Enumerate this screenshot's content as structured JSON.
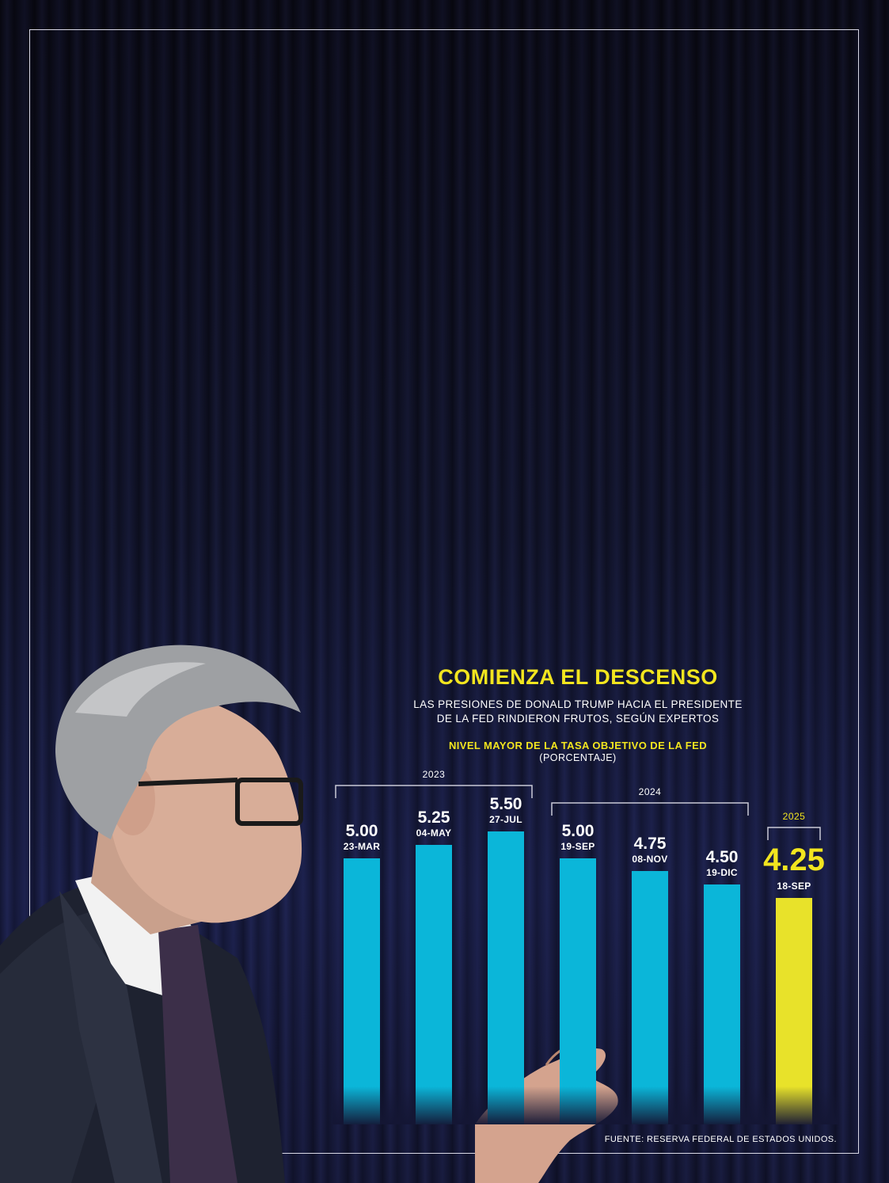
{
  "chart_data": {
    "type": "bar",
    "title": "COMIENZA EL DESCENSO",
    "subtitle_lines": [
      "LAS PRESIONES DE DONALD TRUMP HACIA EL PRESIDENTE",
      "DE LA FED RINDIERON FRUTOS, SEGÚN EXPERTOS"
    ],
    "metric_label": "NIVEL MAYOR DE LA TASA OBJETIVO DE LA FED",
    "unit_label": "(PORCENTAJE)",
    "categories": [
      "23-MAR",
      "04-MAY",
      "27-JUL",
      "19-SEP",
      "08-NOV",
      "19-DIC",
      "18-SEP"
    ],
    "value_labels": [
      "5.00",
      "5.25",
      "5.50",
      "5.00",
      "4.75",
      "4.50",
      "4.25"
    ],
    "values": [
      5.0,
      5.25,
      5.5,
      5.0,
      4.75,
      4.5,
      4.25
    ],
    "year_groups": [
      {
        "year": "2023",
        "from": 0,
        "to": 2
      },
      {
        "year": "2024",
        "from": 3,
        "to": 5
      },
      {
        "year": "2025",
        "from": 6,
        "to": 6
      }
    ],
    "highlight_index": 6,
    "colors": {
      "bar": "#0bb6d9",
      "highlight": "#e8e22a",
      "title": "#f2e51f",
      "text": "#ffffff"
    },
    "ylim": [
      0,
      5.5
    ],
    "grid": false,
    "legend": "none",
    "source": "FUENTE: RESERVA FEDERAL DE ESTADOS UNIDOS."
  }
}
